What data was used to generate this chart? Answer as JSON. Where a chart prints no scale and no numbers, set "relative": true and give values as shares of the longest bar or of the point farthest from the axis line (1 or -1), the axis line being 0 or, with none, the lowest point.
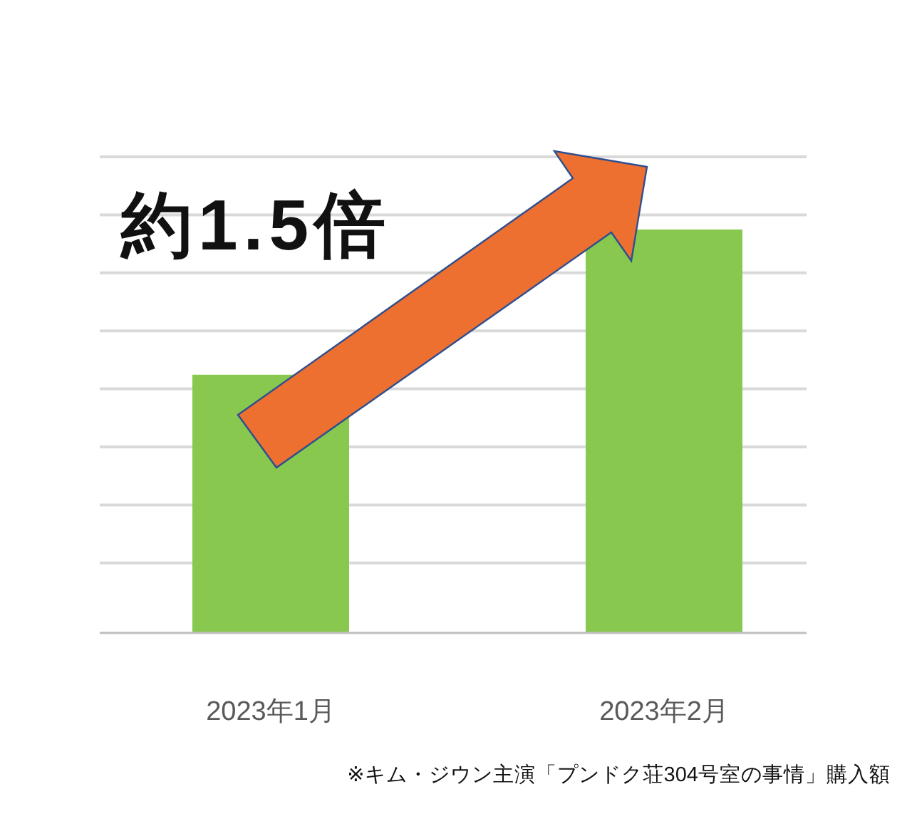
{
  "chart_data": {
    "type": "bar",
    "categories": [
      "2023年1月",
      "2023年2月"
    ],
    "values": [
      0.64,
      1
    ],
    "color": "#88c84f",
    "relative": true,
    "grid": true,
    "annotations": [
      "約1.5倍",
      "※キム・ジウン主演「プンドク荘304号室の事情」購入額"
    ]
  }
}
